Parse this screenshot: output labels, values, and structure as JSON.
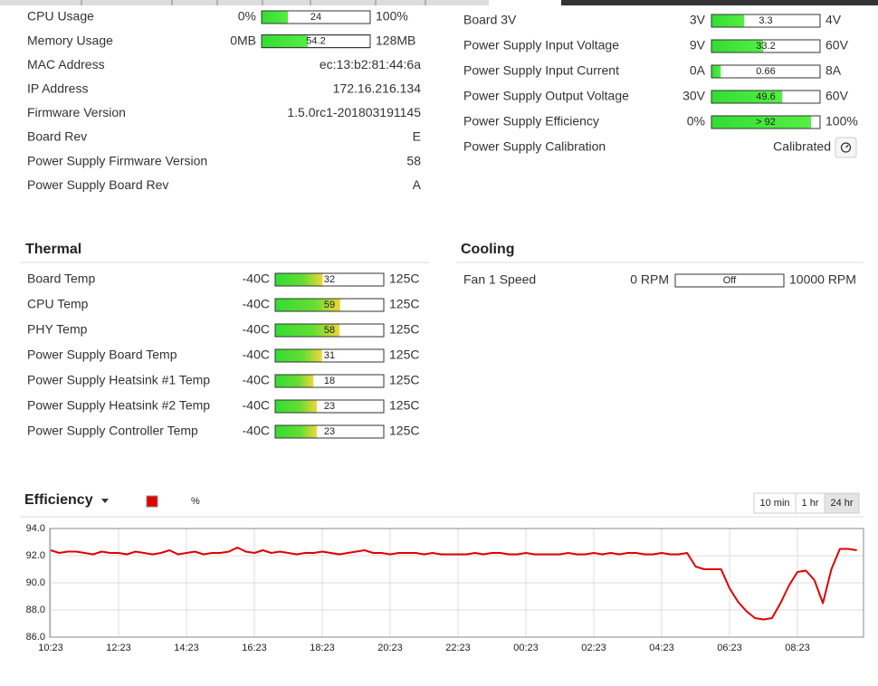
{
  "status": {
    "rows": [
      {
        "label": "CPU Usage",
        "gauge": {
          "min": {
            "value": 0,
            "label": "0%"
          },
          "max": {
            "value": 100,
            "label": "100%"
          },
          "value": 24
        }
      },
      {
        "label": "Memory Usage",
        "gauge": {
          "min": {
            "value": 0,
            "label": "0MB"
          },
          "max": {
            "value": 128,
            "label": "128MB"
          },
          "value": 54.2
        }
      },
      {
        "label": "MAC Address",
        "value": "ec:13:b2:81:44:6a"
      },
      {
        "label": "IP Address",
        "value": "172.16.216.134"
      },
      {
        "label": "Firmware Version",
        "value": "1.5.0rc1-201803191145"
      },
      {
        "label": "Board Rev",
        "value": "E"
      },
      {
        "label": "Power Supply Firmware Version",
        "value": "58"
      },
      {
        "label": "Power Supply Board Rev",
        "value": "A"
      }
    ]
  },
  "power": {
    "rows": [
      {
        "label": "Board 3V",
        "gauge": {
          "min": {
            "value": 3,
            "label": "3V"
          },
          "max": {
            "value": 4,
            "label": "4V"
          },
          "value": 3.3
        }
      },
      {
        "label": "Power Supply Input Voltage",
        "gauge": {
          "min": {
            "value": 9,
            "label": "9V"
          },
          "max": {
            "value": 60,
            "label": "60V"
          },
          "value": 33.2
        }
      },
      {
        "label": "Power Supply Input Current",
        "gauge": {
          "min": {
            "value": 0,
            "label": "0A"
          },
          "max": {
            "value": 8,
            "label": "8A"
          },
          "value": 0.66
        }
      },
      {
        "label": "Power Supply Output Voltage",
        "gauge": {
          "min": {
            "value": 30,
            "label": "30V"
          },
          "max": {
            "value": 60,
            "label": "60V"
          },
          "value": 49.6
        }
      },
      {
        "label": "Power Supply Efficiency",
        "gauge": {
          "min": {
            "value": 0,
            "label": "0%"
          },
          "max": {
            "value": 100,
            "label": "100%"
          },
          "value": 92,
          "value_label": "> 92"
        }
      },
      {
        "label": "Power Supply Calibration",
        "value": "Calibrated"
      }
    ]
  },
  "thermal": {
    "title": "Thermal",
    "rows": [
      {
        "label": "Board Temp",
        "gauge": {
          "min": {
            "value": -40,
            "label": "-40C"
          },
          "max": {
            "value": 125,
            "label": "125C"
          },
          "value": 32
        }
      },
      {
        "label": "CPU Temp",
        "gauge": {
          "min": {
            "value": -40,
            "label": "-40C"
          },
          "max": {
            "value": 125,
            "label": "125C"
          },
          "value": 59
        }
      },
      {
        "label": "PHY Temp",
        "gauge": {
          "min": {
            "value": -40,
            "label": "-40C"
          },
          "max": {
            "value": 125,
            "label": "125C"
          },
          "value": 58
        }
      },
      {
        "label": "Power Supply Board Temp",
        "gauge": {
          "min": {
            "value": -40,
            "label": "-40C"
          },
          "max": {
            "value": 125,
            "label": "125C"
          },
          "value": 31
        }
      },
      {
        "label": "Power Supply Heatsink #1 Temp",
        "gauge": {
          "min": {
            "value": -40,
            "label": "-40C"
          },
          "max": {
            "value": 125,
            "label": "125C"
          },
          "value": 18
        }
      },
      {
        "label": "Power Supply Heatsink #2 Temp",
        "gauge": {
          "min": {
            "value": -40,
            "label": "-40C"
          },
          "max": {
            "value": 125,
            "label": "125C"
          },
          "value": 23
        }
      },
      {
        "label": "Power Supply Controller Temp",
        "gauge": {
          "min": {
            "value": -40,
            "label": "-40C"
          },
          "max": {
            "value": 125,
            "label": "125C"
          },
          "value": 23
        }
      }
    ]
  },
  "cooling": {
    "title": "Cooling",
    "rows": [
      {
        "label": "Fan 1 Speed",
        "gauge": {
          "min": {
            "value": 0,
            "label": "0 RPM"
          },
          "max": {
            "value": 10000,
            "label": "10000 RPM"
          },
          "value": 0,
          "value_label": "Off"
        }
      }
    ]
  },
  "chart_data": {
    "type": "line",
    "title": "Efficiency",
    "range_buttons": [
      {
        "label": "10 min",
        "active": false
      },
      {
        "label": "1 hr",
        "active": false
      },
      {
        "label": "24 hr",
        "active": true
      }
    ],
    "categories": [
      "10:23",
      null,
      null,
      null,
      null,
      null,
      null,
      null,
      "12:23",
      null,
      null,
      null,
      null,
      null,
      null,
      null,
      "14:23",
      null,
      null,
      null,
      null,
      null,
      null,
      null,
      "16:23",
      null,
      null,
      null,
      null,
      null,
      null,
      null,
      "18:23",
      null,
      null,
      null,
      null,
      null,
      null,
      null,
      "20:23",
      null,
      null,
      null,
      null,
      null,
      null,
      null,
      "22:23",
      null,
      null,
      null,
      null,
      null,
      null,
      null,
      "00:23",
      null,
      null,
      null,
      null,
      null,
      null,
      null,
      "02:23",
      null,
      null,
      null,
      null,
      null,
      null,
      null,
      "04:23",
      null,
      null,
      null,
      null,
      null,
      null,
      null,
      "06:23",
      null,
      null,
      null,
      null,
      null,
      null,
      null,
      "08:23",
      null,
      null,
      null,
      null,
      null,
      null,
      null
    ],
    "series": [
      {
        "name": "%",
        "color": "#e00000",
        "values": [
          92.4,
          92.2,
          92.3,
          92.3,
          92.2,
          92.1,
          92.3,
          92.2,
          92.2,
          92.1,
          92.3,
          92.2,
          92.1,
          92.2,
          92.4,
          92.1,
          92.2,
          92.3,
          92.1,
          92.2,
          92.2,
          92.3,
          92.6,
          92.3,
          92.2,
          92.4,
          92.2,
          92.3,
          92.2,
          92.1,
          92.2,
          92.2,
          92.3,
          92.2,
          92.1,
          92.2,
          92.3,
          92.4,
          92.2,
          92.2,
          92.1,
          92.2,
          92.2,
          92.2,
          92.1,
          92.2,
          92.1,
          92.1,
          92.1,
          92.1,
          92.2,
          92.1,
          92.2,
          92.2,
          92.1,
          92.1,
          92.2,
          92.1,
          92.1,
          92.1,
          92.1,
          92.2,
          92.1,
          92.1,
          92.2,
          92.1,
          92.2,
          92.1,
          92.2,
          92.2,
          92.1,
          92.1,
          92.2,
          92.1,
          92.1,
          92.2,
          91.2,
          91.0,
          91.0,
          91.0,
          89.6,
          88.6,
          87.9,
          87.4,
          87.3,
          87.4,
          88.5,
          89.8,
          90.8,
          90.9,
          90.2,
          88.5,
          91.0,
          92.5,
          92.5,
          92.4
        ]
      }
    ],
    "ylim": [
      86,
      94
    ],
    "yticks": [
      {
        "value": 86,
        "label": "86.0"
      },
      {
        "value": 88,
        "label": "88.0"
      },
      {
        "value": 90,
        "label": "90.0"
      },
      {
        "value": 92,
        "label": "92.0"
      },
      {
        "value": 94,
        "label": "94.0"
      }
    ],
    "grid": true
  }
}
